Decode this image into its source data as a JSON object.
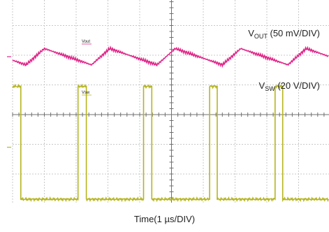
{
  "chart_data": {
    "type": "line",
    "title": "",
    "xlabel": "Time(1 µs/DIV)",
    "grid": true,
    "divisions": {
      "x": 10,
      "y": 8
    },
    "colors": {
      "vout": "#e0288a",
      "vsw": "#b5b520",
      "grid": "#c8c8c8",
      "axis": "#707070"
    },
    "series": [
      {
        "key": "vout",
        "name_main": "V",
        "name_sub": "OUT",
        "name_rest": " (50 mV/DIV)",
        "marker_text": "Vout",
        "period_div": 2.06,
        "first_peak_div": 1.0,
        "level_div": 2.05,
        "ripple_div": 0.55,
        "rise_fraction": 0.28
      },
      {
        "key": "vsw",
        "name_main": "V",
        "name_sub": "SW",
        "name_rest": " (20 V/DIV)",
        "marker_text": "Vsw",
        "period_div": 2.06,
        "high_start_div": [
          0.0,
          2.06,
          4.12,
          6.18,
          8.24
        ],
        "high_width_div": 0.25,
        "high_level_div": 3.05,
        "low_level_div": 6.85
      }
    ]
  }
}
